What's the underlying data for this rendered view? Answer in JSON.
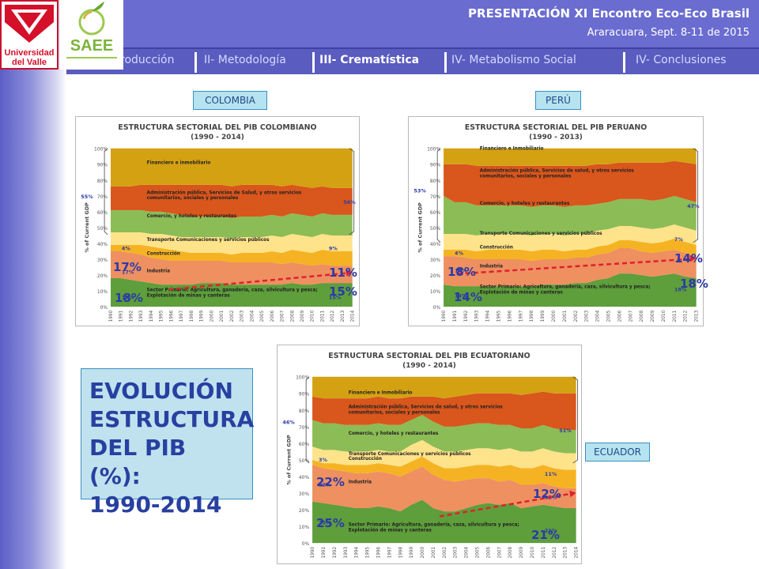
{
  "header": {
    "title": "PRESENTACIÓN XI Encontro Eco-Eco Brasil",
    "subtitle": "Araracuara, Sept. 8-11 de 2015"
  },
  "logos": {
    "univalle_line1": "Universidad",
    "univalle_line2": "del Valle",
    "saee": "SAEE"
  },
  "nav": {
    "items": [
      "roducción",
      "II- Metodología",
      "III- Crematística",
      "IV- Metabolismo Social",
      "IV- Conclusiones"
    ],
    "active_index": 2
  },
  "evolucion": {
    "lines": [
      "EVOLUCIÓN",
      "ESTRUCTURA",
      "DEL PIB (%):",
      "1990-2014"
    ]
  },
  "country_labels": {
    "colombia": "COLOMBIA",
    "peru": "PERÚ",
    "ecuador": "ECUADOR"
  },
  "colors": {
    "financiero": "#d4a112",
    "administracion": "#d9561c",
    "comercio": "#8cbc55",
    "transporte": "#ffe38a",
    "construccion": "#f5b323",
    "industria": "#ee9060",
    "primario": "#5e9e3b",
    "accent": "#2b3aa8",
    "arrow": "#e0202e"
  },
  "chart_data": [
    {
      "type": "area",
      "title": "ESTRUCTURA SECTORIAL DEL PIB COLOMBIANO",
      "subtitle": "(1990 - 2014)",
      "ylabel": "% of Current GDP",
      "ylim": [
        0,
        100
      ],
      "yticks": [
        "0%",
        "10%",
        "20%",
        "30%",
        "40%",
        "50%",
        "60%",
        "70%",
        "80%",
        "90%",
        "100%"
      ],
      "x": [
        "1990",
        "1991",
        "1992",
        "1993",
        "1994",
        "1995",
        "1996",
        "1997",
        "1998",
        "1999",
        "2000",
        "2001",
        "2002",
        "2003",
        "2004",
        "2005",
        "2006",
        "2007",
        "2008",
        "2009",
        "2010",
        "2011",
        "2012",
        "2013",
        "2014"
      ],
      "series": [
        {
          "name": "Sector Primario: Agricultura, ganadería, caza, silvicultura y pesca; Explotación de minas y canteras",
          "color_key": "primario",
          "values": [
            18,
            18,
            17,
            16,
            15,
            14,
            14,
            14,
            14,
            15,
            15,
            15,
            14,
            14,
            14,
            14,
            14,
            14,
            15,
            14,
            14,
            15,
            15,
            15,
            15
          ]
        },
        {
          "name": "Industria",
          "color_key": "industria",
          "values": [
            17,
            17,
            17,
            17,
            16,
            16,
            15,
            15,
            15,
            14,
            14,
            14,
            14,
            14,
            14,
            14,
            14,
            13,
            13,
            13,
            12,
            12,
            11,
            11,
            11
          ]
        },
        {
          "name": "Construcción",
          "color_key": "construccion",
          "values": [
            4,
            4,
            5,
            6,
            7,
            7,
            7,
            6,
            5,
            5,
            5,
            5,
            5,
            6,
            6,
            6,
            7,
            7,
            8,
            8,
            8,
            9,
            9,
            9,
            9
          ]
        },
        {
          "name": "Transporte Comunicaciones y servicios públicos",
          "color_key": "transporte",
          "values": [
            8,
            8,
            8,
            8,
            8,
            9,
            9,
            9,
            10,
            10,
            10,
            10,
            10,
            10,
            10,
            10,
            10,
            10,
            10,
            10,
            10,
            10,
            10,
            10,
            10
          ]
        },
        {
          "name": "Comercio, y hoteles y restaurantes",
          "color_key": "comercio",
          "values": [
            14,
            14,
            14,
            14,
            14,
            14,
            14,
            14,
            13,
            13,
            13,
            13,
            13,
            13,
            13,
            13,
            13,
            13,
            13,
            13,
            13,
            13,
            13,
            13,
            13
          ]
        },
        {
          "name": "Administración pública, Servicios de Salud, y otros servicios comunitarios, sociales y personales",
          "color_key": "administracion",
          "values": [
            15,
            15,
            15,
            16,
            17,
            17,
            18,
            19,
            20,
            20,
            20,
            20,
            20,
            20,
            20,
            20,
            19,
            19,
            18,
            18,
            18,
            17,
            17,
            17,
            17
          ]
        },
        {
          "name": "Financiero e inmobiliario",
          "color_key": "financiero",
          "values": [
            24,
            24,
            24,
            23,
            23,
            23,
            23,
            23,
            23,
            23,
            23,
            23,
            24,
            23,
            23,
            23,
            23,
            24,
            23,
            24,
            25,
            24,
            25,
            25,
            25
          ]
        }
      ],
      "annotations": {
        "start_pct": "55%",
        "end_pct": "56%",
        "small_start": [
          "4%",
          "17%",
          "18%"
        ],
        "small_end": [
          "9%",
          "15%"
        ],
        "big_start": [
          "17%",
          "18%"
        ],
        "big_end": [
          "11%",
          "15%"
        ]
      }
    },
    {
      "type": "area",
      "title": "ESTRUCTURA SECTORIAL DEL PIB PERUANO",
      "subtitle": "(1990 - 2013)",
      "ylabel": "% of Current GDP",
      "ylim": [
        0,
        100
      ],
      "yticks": [
        "0%",
        "10%",
        "20%",
        "30%",
        "40%",
        "50%",
        "60%",
        "70%",
        "80%",
        "90%",
        "100%"
      ],
      "x": [
        "1990",
        "1991",
        "1992",
        "1993",
        "1994",
        "1995",
        "1996",
        "1997",
        "1998",
        "1999",
        "2000",
        "2001",
        "2002",
        "2003",
        "2004",
        "2005",
        "2006",
        "2007",
        "2008",
        "2009",
        "2010",
        "2011",
        "2012",
        "2013"
      ],
      "series": [
        {
          "name": "Sector Primario: Agricultura, ganadería, caza, silvicultura y pesca; Explotación de minas y canteras",
          "color_key": "primario",
          "values": [
            14,
            13,
            13,
            13,
            13,
            13,
            13,
            13,
            13,
            14,
            14,
            14,
            15,
            15,
            17,
            18,
            21,
            21,
            20,
            19,
            20,
            21,
            19,
            18
          ]
        },
        {
          "name": "Industria",
          "color_key": "industria",
          "values": [
            18,
            19,
            18,
            17,
            17,
            17,
            17,
            17,
            16,
            16,
            16,
            16,
            16,
            16,
            16,
            16,
            16,
            16,
            15,
            15,
            15,
            15,
            15,
            14
          ]
        },
        {
          "name": "Construcción",
          "color_key": "construccion",
          "values": [
            4,
            4,
            5,
            5,
            6,
            6,
            6,
            6,
            6,
            6,
            6,
            5,
            5,
            5,
            5,
            5,
            5,
            5,
            6,
            6,
            6,
            7,
            7,
            7
          ]
        },
        {
          "name": "Transporte Comunicaciones y servicios públicos",
          "color_key": "transporte",
          "values": [
            10,
            10,
            10,
            10,
            10,
            10,
            10,
            10,
            10,
            10,
            10,
            10,
            10,
            10,
            10,
            10,
            9,
            9,
            9,
            9,
            9,
            9,
            9,
            9
          ]
        },
        {
          "name": "Comercio, y hoteles y restaurantes",
          "color_key": "comercio",
          "values": [
            24,
            20,
            20,
            19,
            18,
            18,
            18,
            18,
            18,
            18,
            18,
            18,
            18,
            18,
            17,
            17,
            17,
            17,
            18,
            18,
            18,
            18,
            18,
            18
          ]
        },
        {
          "name": "Administración pública, Servicios de salud, y otros servicios comunitarios, sociales y personales",
          "color_key": "administracion",
          "values": [
            20,
            24,
            24,
            25,
            25,
            25,
            25,
            25,
            26,
            25,
            25,
            26,
            25,
            25,
            25,
            24,
            23,
            23,
            23,
            24,
            23,
            22,
            23,
            24
          ]
        },
        {
          "name": "Financiero e Inmobiliario",
          "color_key": "financiero",
          "values": [
            10,
            10,
            10,
            11,
            11,
            11,
            11,
            11,
            11,
            11,
            11,
            11,
            11,
            11,
            10,
            10,
            9,
            9,
            9,
            9,
            9,
            8,
            9,
            10
          ]
        }
      ],
      "annotations": {
        "start_pct": "53%",
        "end_pct": "47%",
        "small_start": [
          "4%",
          "18%",
          "14%"
        ],
        "small_end": [
          "7%",
          "18%"
        ],
        "big_start": [
          "18%",
          "14%"
        ],
        "big_end": [
          "14%",
          "18%"
        ]
      }
    },
    {
      "type": "area",
      "title": "ESTRUCTURA SECTORIAL DEL PIB ECUATORIANO",
      "subtitle": "(1990 - 2014)",
      "ylabel": "% of Current GDP",
      "ylim": [
        0,
        100
      ],
      "yticks": [
        "0%",
        "10%",
        "20%",
        "30%",
        "40%",
        "50%",
        "60%",
        "70%",
        "80%",
        "90%",
        "100%"
      ],
      "x": [
        "1990",
        "1991",
        "1992",
        "1993",
        "1994",
        "1995",
        "1996",
        "1997",
        "1998",
        "1999",
        "2000",
        "2001",
        "2002",
        "2003",
        "2004",
        "2005",
        "2006",
        "2007",
        "2008",
        "2009",
        "2010",
        "2011",
        "2012",
        "2013",
        "2014"
      ],
      "series": [
        {
          "name": "Sector Primario: Agricultura, ganadería, caza, silvicultura y pesca; Explotación de minas y canteras",
          "color_key": "primario",
          "values": [
            25,
            24,
            23,
            22,
            21,
            21,
            22,
            21,
            19,
            23,
            26,
            21,
            19,
            19,
            21,
            23,
            24,
            23,
            24,
            21,
            22,
            23,
            22,
            21,
            21
          ]
        },
        {
          "name": "Industria",
          "color_key": "industria",
          "values": [
            22,
            21,
            21,
            21,
            21,
            21,
            21,
            21,
            21,
            20,
            20,
            20,
            19,
            18,
            17,
            16,
            15,
            14,
            14,
            14,
            13,
            13,
            12,
            12,
            12
          ]
        },
        {
          "name": "Construcción",
          "color_key": "construccion",
          "values": [
            3,
            3,
            4,
            4,
            5,
            5,
            5,
            5,
            6,
            6,
            6,
            7,
            7,
            8,
            8,
            8,
            8,
            9,
            9,
            10,
            10,
            11,
            11,
            11,
            11
          ]
        },
        {
          "name": "Transporte Comunicaciones y servicios públicos",
          "color_key": "transporte",
          "values": [
            8,
            8,
            8,
            8,
            8,
            8,
            8,
            8,
            9,
            10,
            10,
            10,
            10,
            10,
            10,
            10,
            10,
            10,
            10,
            10,
            10,
            10,
            10,
            10,
            10
          ]
        },
        {
          "name": "Comercio, y hoteles y restaurantes",
          "color_key": "comercio",
          "values": [
            16,
            16,
            16,
            16,
            16,
            16,
            16,
            16,
            16,
            15,
            15,
            15,
            15,
            15,
            15,
            15,
            15,
            15,
            14,
            14,
            14,
            14,
            14,
            14,
            14
          ]
        },
        {
          "name": "Administración pública, Servicios de salud, y otros servicios comunitarios, sociales y personales",
          "color_key": "administracion",
          "values": [
            14,
            15,
            15,
            16,
            16,
            16,
            16,
            16,
            16,
            14,
            11,
            15,
            17,
            18,
            18,
            18,
            18,
            19,
            19,
            20,
            21,
            20,
            21,
            22,
            22
          ]
        },
        {
          "name": "Financiero e Inmobiliario",
          "color_key": "financiero",
          "values": [
            12,
            13,
            13,
            13,
            13,
            13,
            12,
            13,
            13,
            12,
            12,
            12,
            13,
            12,
            11,
            10,
            10,
            10,
            10,
            11,
            10,
            9,
            10,
            10,
            10
          ]
        }
      ],
      "annotations": {
        "start_pct": "46%",
        "end_pct": "51%",
        "small_start": [
          "3%",
          "22%",
          "25%"
        ],
        "small_end": [
          "11%",
          "12%",
          "21%"
        ],
        "big_start": [
          "22%",
          "25%"
        ],
        "big_end": [
          "12%",
          "21%"
        ]
      }
    }
  ]
}
